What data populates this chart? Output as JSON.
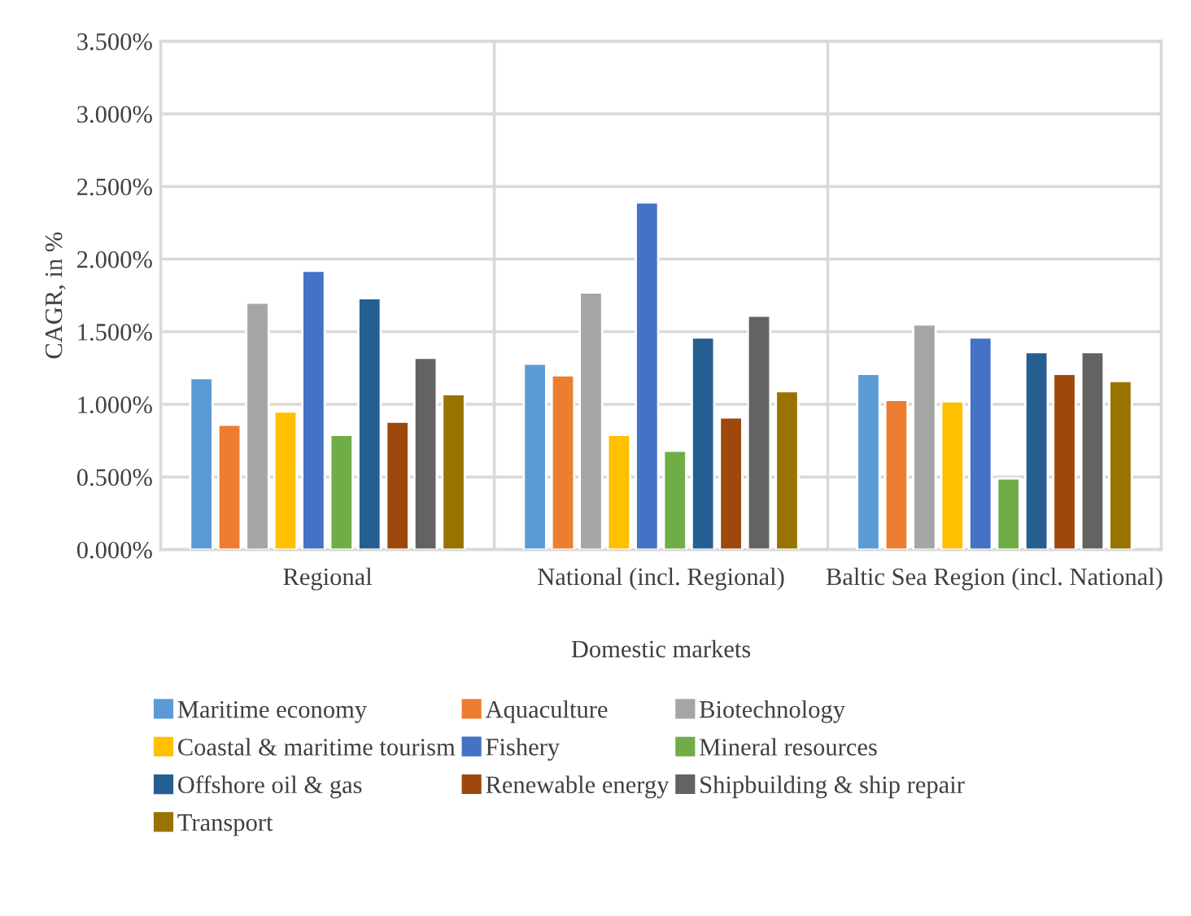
{
  "chart_data": {
    "type": "bar",
    "xlabel": "Domestic markets",
    "ylabel": "CAGR, in %",
    "categories": [
      "Regional",
      "National (incl. Regional)",
      "Baltic Sea Region (incl. National)"
    ],
    "series": [
      {
        "name": "Maritime economy",
        "color": "#5b9bd5",
        "values": [
          1.18,
          1.28,
          1.21
        ]
      },
      {
        "name": "Aquaculture",
        "color": "#ed7d31",
        "values": [
          0.86,
          1.2,
          1.03
        ]
      },
      {
        "name": "Biotechnology",
        "color": "#a5a5a5",
        "values": [
          1.7,
          1.77,
          1.55
        ]
      },
      {
        "name": "Coastal & maritime tourism",
        "color": "#ffc000",
        "values": [
          0.95,
          0.79,
          1.02
        ]
      },
      {
        "name": "Fishery",
        "color": "#4472c4",
        "values": [
          1.92,
          2.39,
          1.46
        ]
      },
      {
        "name": "Mineral resources",
        "color": "#70ad47",
        "values": [
          0.79,
          0.68,
          0.49
        ]
      },
      {
        "name": "Offshore oil & gas",
        "color": "#255e91",
        "values": [
          1.73,
          1.46,
          1.36
        ]
      },
      {
        "name": "Renewable energy",
        "color": "#9e480e",
        "values": [
          0.88,
          0.91,
          1.21
        ]
      },
      {
        "name": "Shipbuilding & ship repair",
        "color": "#636363",
        "values": [
          1.32,
          1.61,
          1.36
        ]
      },
      {
        "name": "Transport",
        "color": "#997300",
        "values": [
          1.07,
          1.09,
          1.16
        ]
      }
    ],
    "ylim": [
      0,
      3.5
    ],
    "yticks": [
      {
        "value": 0,
        "label": "0.000%"
      },
      {
        "value": 0.5,
        "label": "0.500%"
      },
      {
        "value": 1.0,
        "label": "1.000%"
      },
      {
        "value": 1.5,
        "label": "1.500%"
      },
      {
        "value": 2.0,
        "label": "2.000%"
      },
      {
        "value": 2.5,
        "label": "2.500%"
      },
      {
        "value": 3.0,
        "label": "3.000%"
      },
      {
        "value": 3.5,
        "label": "3.500%"
      }
    ],
    "grid": true,
    "legend": "bottom"
  }
}
